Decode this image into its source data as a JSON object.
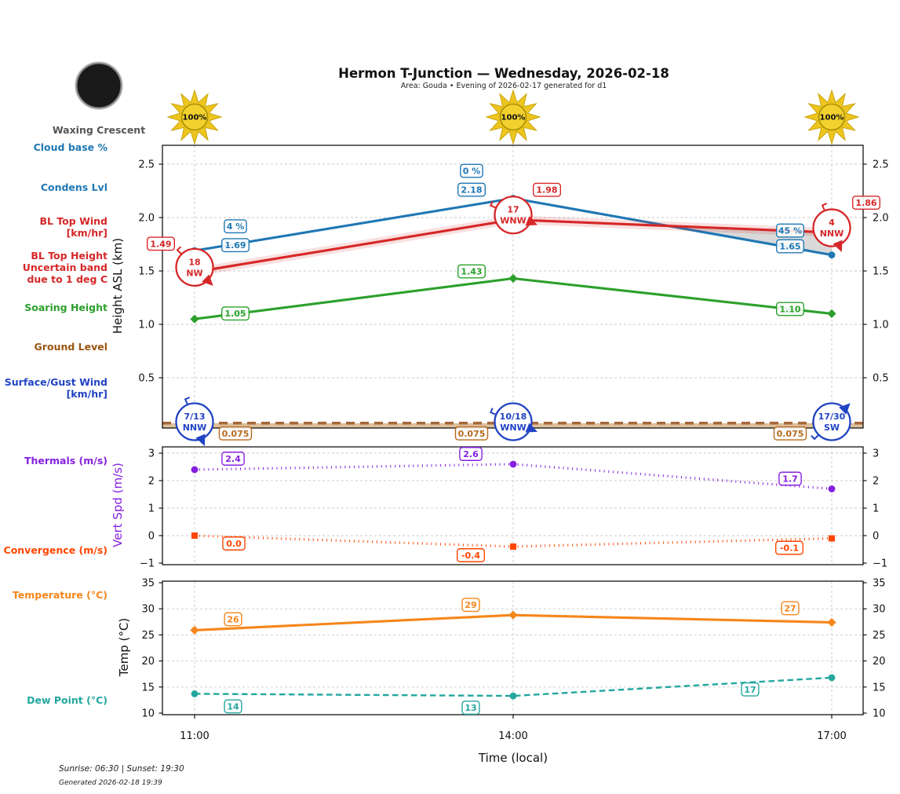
{
  "header": {
    "title": "Hermon T-Junction — Wednesday, 2026-02-18",
    "subtitle": "Area: Gouda • Evening of 2026-02-17 generated for d1"
  },
  "moon": {
    "phase_label": "Waxing Crescent"
  },
  "sun_icons": {
    "values": [
      "100%",
      "100%",
      "100%"
    ]
  },
  "left_labels": {
    "cloud_base": "Cloud base %",
    "condens_lvl": "Condens Lvl",
    "bl_top_wind": [
      "BL Top Wind",
      "[km/hr]"
    ],
    "bl_top_height": [
      "BL Top Height",
      "Uncertain band",
      "due to 1 deg C"
    ],
    "soaring_height": "Soaring Height",
    "ground_level": "Ground Level",
    "surface_wind": [
      "Surface/Gust Wind",
      "[km/hr]"
    ],
    "thermals": "Thermals (m/s)",
    "convergence": "Convergence (m/s)",
    "temperature": "Temperature (°C)",
    "dew_point": "Dew Point (°C)"
  },
  "xaxis": {
    "label": "Time (local)",
    "ticks": [
      "11:00",
      "14:00",
      "17:00"
    ]
  },
  "footer": {
    "sun_times": "Sunrise: 06:30 | Sunset: 19:30",
    "generated": "Generated 2026-02-18 19:39"
  },
  "chart_data": [
    {
      "type": "line",
      "panel": "height",
      "ylabel": "Height ASL (km)",
      "x": [
        "11:00",
        "14:00",
        "17:00"
      ],
      "ylim": [
        0,
        2.7
      ],
      "yticks": [
        0.5,
        1.0,
        1.5,
        2.0,
        2.5
      ],
      "grid": true,
      "series": [
        {
          "name": "Condens Lvl",
          "color": "#1f77b4",
          "style": "solid",
          "marker": "circle",
          "values": [
            1.69,
            2.18,
            1.65
          ],
          "point_labels": [
            "1.69",
            "2.18",
            "1.65"
          ],
          "cloud_base_pct_labels": [
            "4 %",
            "0 %",
            "45 %"
          ]
        },
        {
          "name": "BL Top Height",
          "color": "#d62728",
          "style": "solid",
          "marker": "none",
          "values": [
            1.49,
            1.98,
            1.86
          ],
          "point_labels": [
            "1.49",
            "1.98",
            "1.86"
          ],
          "uncertain_band": true
        },
        {
          "name": "Soaring Height",
          "color": "#2ca02c",
          "style": "solid",
          "marker": "diamond",
          "values": [
            1.05,
            1.43,
            1.1
          ],
          "point_labels": [
            "1.05",
            "1.43",
            "1.10"
          ]
        },
        {
          "name": "Ground Level",
          "color": "#a5683b",
          "box_color": "#b5691f",
          "style": "ground-dashed",
          "marker": "none",
          "values": [
            0.075,
            0.075,
            0.075
          ],
          "point_labels": [
            "0.075",
            "0.075",
            "0.075"
          ],
          "fill_below": true,
          "fill_color": "rgba(216,181,137,0.85)"
        }
      ],
      "shade_between": {
        "a": "Condens Lvl",
        "b": "BL Top Height",
        "color": "rgba(128,128,128,0.30)"
      },
      "wind_annotations": {
        "bl_top": {
          "color": "#d62728",
          "points": [
            {
              "speed": "18",
              "dir": "NW"
            },
            {
              "speed": "17",
              "dir": "WNW"
            },
            {
              "speed": "4",
              "dir": "NNW"
            }
          ]
        },
        "surface": {
          "color": "#2143c4",
          "points": [
            {
              "speed": "7/13",
              "dir": "NNW"
            },
            {
              "speed": "10/18",
              "dir": "WNW"
            },
            {
              "speed": "17/30",
              "dir": "SW"
            }
          ]
        }
      }
    },
    {
      "type": "line",
      "panel": "vertical-speed",
      "ylabel": "Vert Spd (m/s)",
      "x": [
        "11:00",
        "14:00",
        "17:00"
      ],
      "ylim": [
        -1.05,
        3.25
      ],
      "yticks": [
        -1,
        0,
        1,
        2,
        3
      ],
      "grid": true,
      "series": [
        {
          "name": "Thermals",
          "color": "#8520e0",
          "style": "dotted",
          "marker": "circle",
          "values": [
            2.4,
            2.6,
            1.7
          ],
          "point_labels": [
            "2.4",
            "2.6",
            "1.7"
          ]
        },
        {
          "name": "Convergence",
          "color": "#ff4500",
          "style": "dotted",
          "marker": "square",
          "values": [
            0.0,
            -0.4,
            -0.1
          ],
          "point_labels": [
            "0.0",
            "-0.4",
            "-0.1"
          ]
        }
      ]
    },
    {
      "type": "line",
      "panel": "temperature",
      "ylabel": "Temp (°C)",
      "x": [
        "11:00",
        "14:00",
        "17:00"
      ],
      "ylim": [
        9.7,
        35.3
      ],
      "yticks": [
        10,
        15,
        20,
        25,
        30,
        35
      ],
      "grid": true,
      "series": [
        {
          "name": "Temperature",
          "color": "#f5861b",
          "style": "solid",
          "marker": "diamond",
          "values": [
            25.9,
            28.8,
            27.4
          ],
          "point_labels": [
            "26",
            "29",
            "27"
          ]
        },
        {
          "name": "Dew Point",
          "color": "#23a79e",
          "style": "dashed",
          "marker": "circle",
          "values": [
            13.7,
            13.3,
            16.8
          ],
          "point_labels": [
            "14",
            "13",
            "17"
          ]
        }
      ]
    }
  ]
}
